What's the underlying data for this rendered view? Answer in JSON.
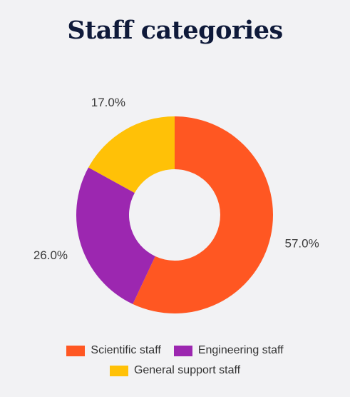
{
  "chart_data": {
    "type": "pie",
    "title": "Staff categories",
    "categories": [
      "Scientific staff",
      "Engineering staff",
      "General support staff"
    ],
    "values": [
      57.0,
      26.0,
      17.0
    ],
    "labels": [
      "57.0%",
      "26.0%",
      "17.0%"
    ],
    "colors": [
      "#ff5722",
      "#9c27b0",
      "#ffc107"
    ],
    "donut": true,
    "legend": "bottom"
  }
}
